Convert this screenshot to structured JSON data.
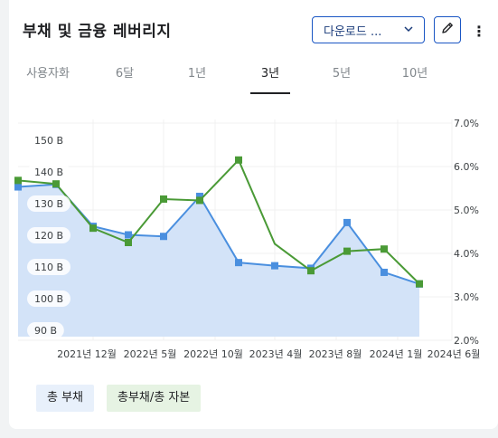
{
  "header": {
    "title": "부채 및 금융 레버리지",
    "download_label": "다운로드 ...",
    "download_chevron": "chevron-down-icon",
    "edit_icon": "pencil-icon",
    "more_icon": "more-vert-icon"
  },
  "tabs": [
    {
      "label": "사용자화",
      "active": false
    },
    {
      "label": "6달",
      "active": false
    },
    {
      "label": "1년",
      "active": false
    },
    {
      "label": "3년",
      "active": true
    },
    {
      "label": "5년",
      "active": false
    },
    {
      "label": "10년",
      "active": false
    }
  ],
  "legend": {
    "total_debt": "총 부채",
    "debt_ratio": "총부채/총 자본"
  },
  "colors": {
    "total_debt_line": "#4a8fdf",
    "total_debt_fill": "#d3e3f8",
    "debt_ratio_line": "#4a9a36",
    "legend_blue_bg": "#e8f0fb",
    "legend_green_bg": "#e6f3e3"
  },
  "chart_data": {
    "type": "area",
    "x_ticks": [
      "2021년 12월",
      "2022년 5월",
      "2022년 10월",
      "2023년 4월",
      "2023년 8월",
      "2024년 1월",
      "2024년 6월"
    ],
    "left_axis": {
      "ticks": [
        "150 B",
        "140 B",
        "130 B",
        "120 B",
        "110 B",
        "100 B",
        "90 B"
      ],
      "range": [
        88,
        152
      ],
      "unit": "B"
    },
    "right_axis": {
      "ticks": [
        "7.0%",
        "6.0%",
        "5.0%",
        "4.0%",
        "3.0%",
        "2.0%"
      ],
      "range": [
        2.0,
        7.0
      ],
      "unit": "%"
    },
    "x": [
      "2021-06",
      "2021-09",
      "2021-12",
      "2022-03",
      "2022-06",
      "2022-09",
      "2022-12",
      "2023-03",
      "2023-06",
      "2023-09",
      "2023-12",
      "2024-03"
    ],
    "series": [
      {
        "name": "총 부채",
        "axis": "left",
        "values": [
          135.2,
          136.0,
          122.7,
          120.0,
          119.5,
          132.2,
          111.2,
          110.2,
          109.4,
          123.9,
          108.1,
          104.4
        ]
      },
      {
        "name": "총부채/총 자본",
        "axis": "right",
        "values": [
          5.68,
          5.6,
          4.58,
          4.25,
          5.25,
          5.22,
          6.15,
          null,
          3.6,
          4.05,
          4.1,
          3.3
        ]
      }
    ],
    "ratio_unmarked_point": {
      "x": "2023-03",
      "value": 4.22
    },
    "grid": true
  }
}
